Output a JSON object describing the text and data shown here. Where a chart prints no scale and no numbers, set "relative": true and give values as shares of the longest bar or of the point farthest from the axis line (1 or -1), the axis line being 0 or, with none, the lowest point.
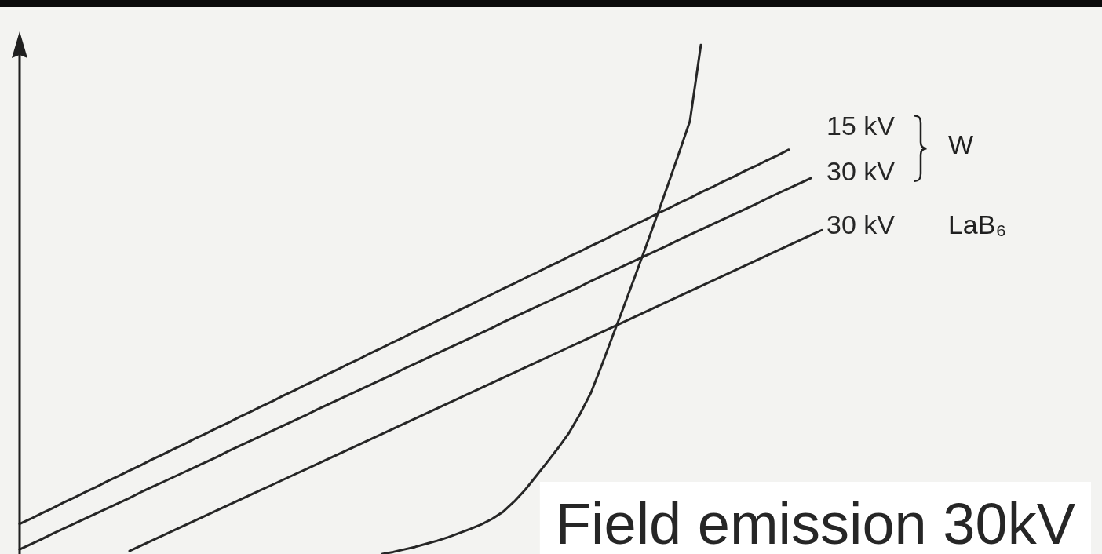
{
  "chart_data": {
    "type": "line",
    "relative": true,
    "line_style": "solid",
    "categories": [
      null,
      null,
      null,
      null,
      null,
      null,
      null,
      null,
      null,
      null,
      null,
      null,
      null,
      null,
      null,
      null,
      null,
      null,
      null,
      null,
      null,
      null,
      null,
      null,
      null,
      null,
      null,
      null,
      null,
      null,
      null,
      null,
      null,
      null,
      null,
      null,
      null,
      null,
      null,
      null,
      null,
      null,
      null,
      null,
      null,
      null,
      null,
      null,
      null,
      null,
      null,
      null,
      null,
      null,
      null,
      null,
      null,
      null,
      null,
      null,
      null,
      null,
      null,
      null,
      null,
      null,
      null,
      null,
      null,
      null,
      null,
      null,
      null,
      null
    ],
    "series": [
      {
        "name": "15 kV",
        "color": "#262626",
        "values": [
          0.059,
          0.069,
          0.08,
          0.09,
          0.101,
          0.111,
          0.122,
          0.132,
          0.143,
          0.153,
          0.164,
          0.174,
          0.185,
          0.195,
          0.206,
          0.216,
          0.227,
          0.237,
          0.248,
          0.258,
          0.269,
          0.279,
          0.29,
          0.3,
          0.311,
          0.321,
          0.332,
          0.342,
          0.353,
          0.363,
          0.374,
          0.384,
          0.395,
          0.405,
          0.416,
          0.426,
          0.437,
          0.447,
          0.458,
          0.468,
          0.479,
          0.489,
          0.5,
          0.51,
          0.521,
          0.531,
          0.542,
          0.552,
          0.563,
          0.573,
          0.584,
          0.594,
          0.605,
          0.615,
          0.626,
          0.636,
          0.647,
          0.657,
          0.668,
          0.678,
          0.689,
          0.699,
          0.71,
          0.72,
          0.731,
          0.741,
          0.752,
          0.762,
          0.773,
          0.783,
          0.794,
          null,
          null,
          null
        ]
      },
      {
        "name": "30 kV",
        "color": "#262626",
        "values": [
          0.009,
          0.019,
          0.029,
          0.04,
          0.05,
          0.06,
          0.07,
          0.08,
          0.09,
          0.1,
          0.11,
          0.121,
          0.131,
          0.141,
          0.151,
          0.161,
          0.171,
          0.181,
          0.191,
          0.202,
          0.212,
          0.222,
          0.232,
          0.242,
          0.252,
          0.262,
          0.272,
          0.283,
          0.293,
          0.303,
          0.313,
          0.323,
          0.333,
          0.343,
          0.353,
          0.364,
          0.374,
          0.384,
          0.394,
          0.404,
          0.414,
          0.424,
          0.434,
          0.444,
          0.455,
          0.465,
          0.475,
          0.485,
          0.495,
          0.505,
          0.515,
          0.525,
          0.536,
          0.546,
          0.556,
          0.566,
          0.576,
          0.586,
          0.596,
          0.606,
          0.617,
          0.627,
          0.637,
          0.647,
          0.657,
          0.667,
          0.677,
          0.687,
          0.698,
          0.708,
          0.718,
          0.728,
          0.738,
          null
        ]
      },
      {
        "name": "30 kV",
        "color": "#262626",
        "values": [
          null,
          null,
          null,
          null,
          null,
          null,
          null,
          null,
          null,
          null,
          0.006,
          0.016,
          0.026,
          0.036,
          0.046,
          0.056,
          0.066,
          0.076,
          0.086,
          0.096,
          0.106,
          0.116,
          0.126,
          0.136,
          0.146,
          0.156,
          0.166,
          0.176,
          0.186,
          0.196,
          0.206,
          0.216,
          0.226,
          0.236,
          0.246,
          0.256,
          0.266,
          0.276,
          0.286,
          0.296,
          0.306,
          0.316,
          0.326,
          0.336,
          0.346,
          0.356,
          0.366,
          0.376,
          0.386,
          0.396,
          0.406,
          0.416,
          0.426,
          0.436,
          0.446,
          0.456,
          0.466,
          0.476,
          0.486,
          0.496,
          0.506,
          0.516,
          0.526,
          0.536,
          0.546,
          0.556,
          0.566,
          0.576,
          0.586,
          0.596,
          0.606,
          0.616,
          0.626,
          0.636
        ]
      },
      {
        "name": "Field emission 30kV",
        "color": "#262626",
        "values": [
          null,
          null,
          null,
          null,
          null,
          null,
          null,
          null,
          null,
          null,
          null,
          null,
          null,
          null,
          null,
          null,
          null,
          null,
          null,
          null,
          null,
          null,
          null,
          null,
          null,
          null,
          null,
          null,
          null,
          null,
          null,
          null,
          null,
          0,
          0.004,
          0.009,
          0.014,
          0.02,
          0.026,
          0.033,
          0.041,
          0.049,
          0.058,
          0.069,
          0.083,
          0.103,
          0.126,
          0.153,
          0.18,
          0.208,
          0.238,
          0.275,
          0.317,
          0.372,
          0.43,
          0.487,
          0.545,
          0.604,
          0.664,
          0.725,
          0.787,
          0.85,
          1,
          null,
          null,
          null,
          null,
          null,
          null,
          null,
          null,
          null,
          null,
          null
        ]
      }
    ],
    "annotations": [
      "W",
      "LaB₆"
    ]
  }
}
